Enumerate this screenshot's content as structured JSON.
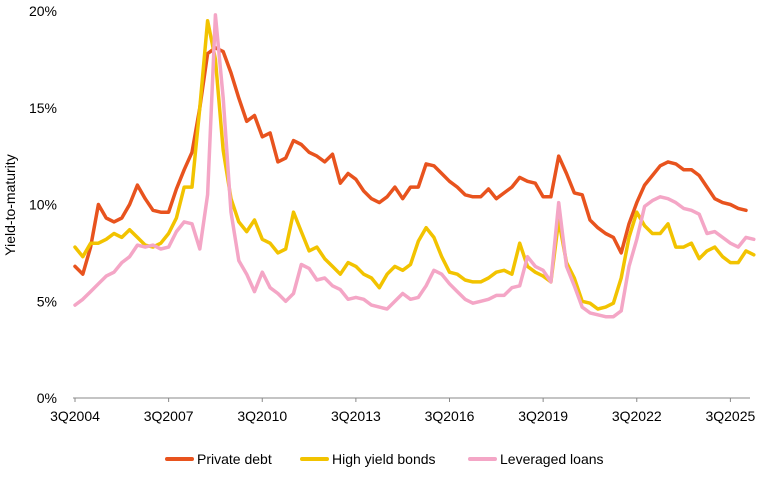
{
  "chart_data": {
    "type": "line",
    "title": "",
    "xlabel": "",
    "ylabel": "Yield-to-maturity",
    "ylim": [
      0,
      20
    ],
    "yticks": [
      0,
      5,
      10,
      15,
      20
    ],
    "ytick_labels": [
      "0%",
      "5%",
      "10%",
      "15%",
      "20%"
    ],
    "xtick_labels": [
      "3Q2004",
      "3Q2007",
      "3Q2010",
      "3Q2013",
      "3Q2016",
      "3Q2019",
      "3Q2022",
      "3Q2025"
    ],
    "xtick_positions": [
      2004.5,
      2007.5,
      2010.5,
      2013.5,
      2016.5,
      2019.5,
      2022.5,
      2025.5
    ],
    "xlim": [
      2004.5,
      2026.0
    ],
    "grid": false,
    "legend_position": "bottom",
    "series": [
      {
        "name": "Private debt",
        "color": "#E8531E",
        "points": [
          [
            2004.5,
            6.8
          ],
          [
            2004.75,
            6.4
          ],
          [
            2005.0,
            7.8
          ],
          [
            2005.25,
            10.0
          ],
          [
            2005.5,
            9.3
          ],
          [
            2005.75,
            9.1
          ],
          [
            2006.0,
            9.3
          ],
          [
            2006.25,
            10.0
          ],
          [
            2006.5,
            11.0
          ],
          [
            2006.75,
            10.3
          ],
          [
            2007.0,
            9.7
          ],
          [
            2007.25,
            9.6
          ],
          [
            2007.5,
            9.6
          ],
          [
            2007.75,
            10.8
          ],
          [
            2008.0,
            11.8
          ],
          [
            2008.25,
            12.7
          ],
          [
            2008.5,
            15.0
          ],
          [
            2008.75,
            17.8
          ],
          [
            2009.0,
            18.1
          ],
          [
            2009.25,
            17.9
          ],
          [
            2009.5,
            16.8
          ],
          [
            2009.75,
            15.5
          ],
          [
            2010.0,
            14.3
          ],
          [
            2010.25,
            14.6
          ],
          [
            2010.5,
            13.5
          ],
          [
            2010.75,
            13.7
          ],
          [
            2011.0,
            12.2
          ],
          [
            2011.25,
            12.4
          ],
          [
            2011.5,
            13.3
          ],
          [
            2011.75,
            13.1
          ],
          [
            2012.0,
            12.7
          ],
          [
            2012.25,
            12.5
          ],
          [
            2012.5,
            12.2
          ],
          [
            2012.75,
            12.6
          ],
          [
            2013.0,
            11.1
          ],
          [
            2013.25,
            11.6
          ],
          [
            2013.5,
            11.3
          ],
          [
            2013.75,
            10.7
          ],
          [
            2014.0,
            10.3
          ],
          [
            2014.25,
            10.1
          ],
          [
            2014.5,
            10.4
          ],
          [
            2014.75,
            10.9
          ],
          [
            2015.0,
            10.3
          ],
          [
            2015.25,
            10.9
          ],
          [
            2015.5,
            10.9
          ],
          [
            2015.75,
            12.1
          ],
          [
            2016.0,
            12.0
          ],
          [
            2016.25,
            11.6
          ],
          [
            2016.5,
            11.2
          ],
          [
            2016.75,
            10.9
          ],
          [
            2017.0,
            10.5
          ],
          [
            2017.25,
            10.4
          ],
          [
            2017.5,
            10.4
          ],
          [
            2017.75,
            10.8
          ],
          [
            2018.0,
            10.3
          ],
          [
            2018.25,
            10.6
          ],
          [
            2018.5,
            10.9
          ],
          [
            2018.75,
            11.4
          ],
          [
            2019.0,
            11.2
          ],
          [
            2019.25,
            11.1
          ],
          [
            2019.5,
            10.4
          ],
          [
            2019.75,
            10.4
          ],
          [
            2020.0,
            12.5
          ],
          [
            2020.25,
            11.6
          ],
          [
            2020.5,
            10.6
          ],
          [
            2020.75,
            10.5
          ],
          [
            2021.0,
            9.2
          ],
          [
            2021.25,
            8.8
          ],
          [
            2021.5,
            8.5
          ],
          [
            2021.75,
            8.3
          ],
          [
            2022.0,
            7.5
          ],
          [
            2022.25,
            9.0
          ],
          [
            2022.5,
            10.1
          ],
          [
            2022.75,
            11.0
          ],
          [
            2023.0,
            11.5
          ],
          [
            2023.25,
            12.0
          ],
          [
            2023.5,
            12.2
          ],
          [
            2023.75,
            12.1
          ],
          [
            2024.0,
            11.8
          ],
          [
            2024.25,
            11.8
          ],
          [
            2024.5,
            11.5
          ],
          [
            2024.75,
            10.9
          ],
          [
            2025.0,
            10.3
          ],
          [
            2025.25,
            10.1
          ],
          [
            2025.5,
            10.0
          ],
          [
            2025.75,
            9.8
          ],
          [
            2026.0,
            9.7
          ]
        ]
      },
      {
        "name": "High yield bonds",
        "color": "#F2C300",
        "points": [
          [
            2004.5,
            7.8
          ],
          [
            2004.75,
            7.3
          ],
          [
            2005.0,
            8.0
          ],
          [
            2005.25,
            8.0
          ],
          [
            2005.5,
            8.2
          ],
          [
            2005.75,
            8.5
          ],
          [
            2006.0,
            8.3
          ],
          [
            2006.25,
            8.7
          ],
          [
            2006.5,
            8.3
          ],
          [
            2006.75,
            7.9
          ],
          [
            2007.0,
            7.8
          ],
          [
            2007.25,
            8.0
          ],
          [
            2007.5,
            8.5
          ],
          [
            2007.75,
            9.3
          ],
          [
            2008.0,
            10.9
          ],
          [
            2008.25,
            10.9
          ],
          [
            2008.5,
            15.0
          ],
          [
            2008.75,
            19.5
          ],
          [
            2009.0,
            17.5
          ],
          [
            2009.25,
            12.8
          ],
          [
            2009.5,
            10.3
          ],
          [
            2009.75,
            9.1
          ],
          [
            2010.0,
            8.6
          ],
          [
            2010.25,
            9.2
          ],
          [
            2010.5,
            8.2
          ],
          [
            2010.75,
            8.0
          ],
          [
            2011.0,
            7.5
          ],
          [
            2011.25,
            7.7
          ],
          [
            2011.5,
            9.6
          ],
          [
            2011.75,
            8.6
          ],
          [
            2012.0,
            7.6
          ],
          [
            2012.25,
            7.8
          ],
          [
            2012.5,
            7.2
          ],
          [
            2012.75,
            6.8
          ],
          [
            2013.0,
            6.4
          ],
          [
            2013.25,
            7.0
          ],
          [
            2013.5,
            6.8
          ],
          [
            2013.75,
            6.4
          ],
          [
            2014.0,
            6.2
          ],
          [
            2014.25,
            5.7
          ],
          [
            2014.5,
            6.4
          ],
          [
            2014.75,
            6.8
          ],
          [
            2015.0,
            6.6
          ],
          [
            2015.25,
            6.9
          ],
          [
            2015.5,
            8.1
          ],
          [
            2015.75,
            8.8
          ],
          [
            2016.0,
            8.3
          ],
          [
            2016.25,
            7.3
          ],
          [
            2016.5,
            6.5
          ],
          [
            2016.75,
            6.4
          ],
          [
            2017.0,
            6.1
          ],
          [
            2017.25,
            6.0
          ],
          [
            2017.5,
            6.0
          ],
          [
            2017.75,
            6.2
          ],
          [
            2018.0,
            6.5
          ],
          [
            2018.25,
            6.6
          ],
          [
            2018.5,
            6.4
          ],
          [
            2018.75,
            8.0
          ],
          [
            2019.0,
            6.8
          ],
          [
            2019.25,
            6.5
          ],
          [
            2019.5,
            6.3
          ],
          [
            2019.75,
            6.0
          ],
          [
            2020.0,
            9.2
          ],
          [
            2020.25,
            7.0
          ],
          [
            2020.5,
            6.2
          ],
          [
            2020.75,
            5.0
          ],
          [
            2021.0,
            4.9
          ],
          [
            2021.25,
            4.6
          ],
          [
            2021.5,
            4.7
          ],
          [
            2021.75,
            4.9
          ],
          [
            2022.0,
            6.2
          ],
          [
            2022.25,
            8.3
          ],
          [
            2022.5,
            9.6
          ],
          [
            2022.75,
            8.9
          ],
          [
            2023.0,
            8.5
          ],
          [
            2023.25,
            8.5
          ],
          [
            2023.5,
            9.0
          ],
          [
            2023.75,
            7.8
          ],
          [
            2024.0,
            7.8
          ],
          [
            2024.25,
            8.0
          ],
          [
            2024.5,
            7.2
          ],
          [
            2024.75,
            7.6
          ],
          [
            2025.0,
            7.8
          ],
          [
            2025.25,
            7.3
          ],
          [
            2025.5,
            7.0
          ],
          [
            2025.75,
            7.0
          ],
          [
            2026.0,
            7.6
          ],
          [
            2026.25,
            7.4
          ]
        ]
      },
      {
        "name": "Leveraged loans",
        "color": "#F4A6C6",
        "points": [
          [
            2004.5,
            4.8
          ],
          [
            2004.75,
            5.1
          ],
          [
            2005.0,
            5.5
          ],
          [
            2005.25,
            5.9
          ],
          [
            2005.5,
            6.3
          ],
          [
            2005.75,
            6.5
          ],
          [
            2006.0,
            7.0
          ],
          [
            2006.25,
            7.3
          ],
          [
            2006.5,
            7.9
          ],
          [
            2006.75,
            7.8
          ],
          [
            2007.0,
            7.9
          ],
          [
            2007.25,
            7.7
          ],
          [
            2007.5,
            7.8
          ],
          [
            2007.75,
            8.6
          ],
          [
            2008.0,
            9.1
          ],
          [
            2008.25,
            9.0
          ],
          [
            2008.5,
            7.7
          ],
          [
            2008.75,
            10.5
          ],
          [
            2009.0,
            19.8
          ],
          [
            2009.25,
            15.5
          ],
          [
            2009.5,
            9.6
          ],
          [
            2009.75,
            7.1
          ],
          [
            2010.0,
            6.4
          ],
          [
            2010.25,
            5.5
          ],
          [
            2010.5,
            6.5
          ],
          [
            2010.75,
            5.7
          ],
          [
            2011.0,
            5.4
          ],
          [
            2011.25,
            5.0
          ],
          [
            2011.5,
            5.4
          ],
          [
            2011.75,
            6.9
          ],
          [
            2012.0,
            6.7
          ],
          [
            2012.25,
            6.1
          ],
          [
            2012.5,
            6.2
          ],
          [
            2012.75,
            5.8
          ],
          [
            2013.0,
            5.6
          ],
          [
            2013.25,
            5.1
          ],
          [
            2013.5,
            5.2
          ],
          [
            2013.75,
            5.1
          ],
          [
            2014.0,
            4.8
          ],
          [
            2014.25,
            4.7
          ],
          [
            2014.5,
            4.6
          ],
          [
            2014.75,
            5.0
          ],
          [
            2015.0,
            5.4
          ],
          [
            2015.25,
            5.1
          ],
          [
            2015.5,
            5.2
          ],
          [
            2015.75,
            5.8
          ],
          [
            2016.0,
            6.6
          ],
          [
            2016.25,
            6.4
          ],
          [
            2016.5,
            5.9
          ],
          [
            2016.75,
            5.5
          ],
          [
            2017.0,
            5.1
          ],
          [
            2017.25,
            4.9
          ],
          [
            2017.5,
            5.0
          ],
          [
            2017.75,
            5.1
          ],
          [
            2018.0,
            5.3
          ],
          [
            2018.25,
            5.3
          ],
          [
            2018.5,
            5.7
          ],
          [
            2018.75,
            5.8
          ],
          [
            2019.0,
            7.3
          ],
          [
            2019.25,
            6.8
          ],
          [
            2019.5,
            6.6
          ],
          [
            2019.75,
            6.0
          ],
          [
            2020.0,
            10.1
          ],
          [
            2020.25,
            6.8
          ],
          [
            2020.5,
            5.8
          ],
          [
            2020.75,
            4.7
          ],
          [
            2021.0,
            4.4
          ],
          [
            2021.25,
            4.3
          ],
          [
            2021.5,
            4.2
          ],
          [
            2021.75,
            4.2
          ],
          [
            2022.0,
            4.5
          ],
          [
            2022.25,
            6.8
          ],
          [
            2022.5,
            8.2
          ],
          [
            2022.75,
            9.9
          ],
          [
            2023.0,
            10.2
          ],
          [
            2023.25,
            10.4
          ],
          [
            2023.5,
            10.3
          ],
          [
            2023.75,
            10.1
          ],
          [
            2024.0,
            9.8
          ],
          [
            2024.25,
            9.7
          ],
          [
            2024.5,
            9.5
          ],
          [
            2024.75,
            8.5
          ],
          [
            2025.0,
            8.6
          ],
          [
            2025.25,
            8.3
          ],
          [
            2025.5,
            8.0
          ],
          [
            2025.75,
            7.8
          ],
          [
            2026.0,
            8.3
          ],
          [
            2026.25,
            8.2
          ]
        ]
      }
    ]
  }
}
